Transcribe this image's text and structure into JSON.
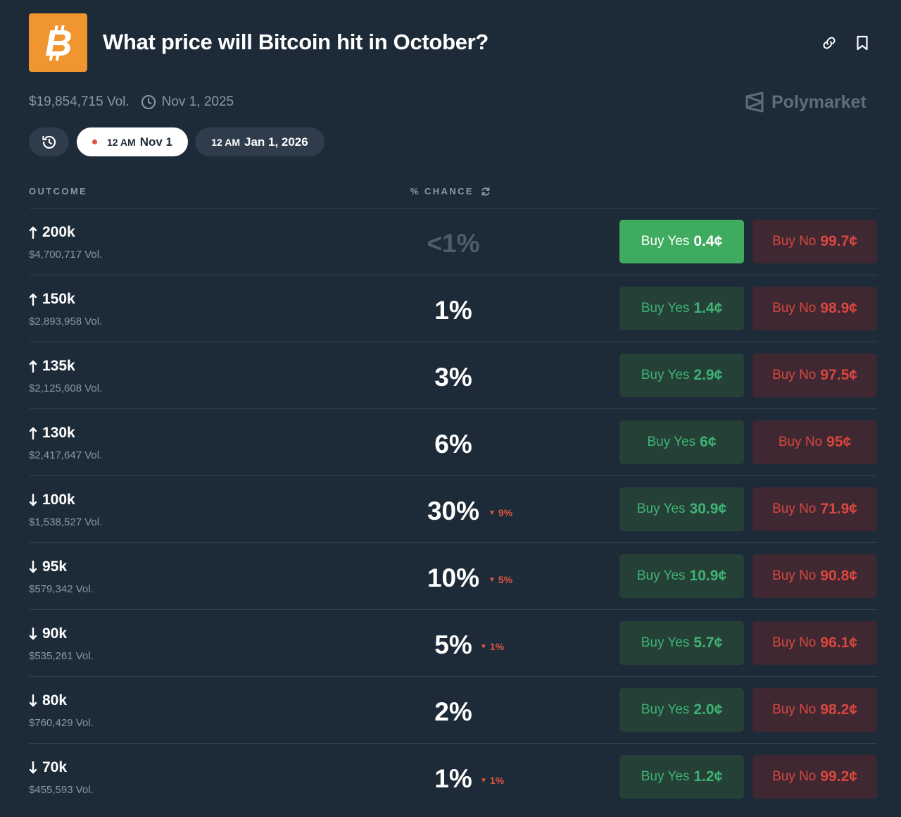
{
  "header": {
    "title": "What price will Bitcoin hit in October?",
    "logo_icon": "bitcoin-icon",
    "logo_color": "#f0952f"
  },
  "meta": {
    "volume": "$19,854,715 Vol.",
    "end_date": "Nov 1, 2025",
    "brand": "Polymarket"
  },
  "date_pills": {
    "selected_time": "12 AM",
    "selected_date": "Nov 1",
    "other_time": "12 AM",
    "other_date": "Jan 1, 2026"
  },
  "table": {
    "outcome_header": "OUTCOME",
    "chance_header": "% CHANCE",
    "yes_label": "Buy Yes",
    "no_label": "Buy No",
    "rows": [
      {
        "direction": "up",
        "label": "200k",
        "volume": "$4,700,717 Vol.",
        "chance": "<1%",
        "delta": "",
        "yes": "0.4¢",
        "no": "99.7¢"
      },
      {
        "direction": "up",
        "label": "150k",
        "volume": "$2,893,958 Vol.",
        "chance": "1%",
        "delta": "",
        "yes": "1.4¢",
        "no": "98.9¢"
      },
      {
        "direction": "up",
        "label": "135k",
        "volume": "$2,125,608 Vol.",
        "chance": "3%",
        "delta": "",
        "yes": "2.9¢",
        "no": "97.5¢"
      },
      {
        "direction": "up",
        "label": "130k",
        "volume": "$2,417,647 Vol.",
        "chance": "6%",
        "delta": "",
        "yes": "6¢",
        "no": "95¢"
      },
      {
        "direction": "down",
        "label": "100k",
        "volume": "$1,538,527 Vol.",
        "chance": "30%",
        "delta": "9%",
        "yes": "30.9¢",
        "no": "71.9¢"
      },
      {
        "direction": "down",
        "label": "95k",
        "volume": "$579,342 Vol.",
        "chance": "10%",
        "delta": "5%",
        "yes": "10.9¢",
        "no": "90.8¢"
      },
      {
        "direction": "down",
        "label": "90k",
        "volume": "$535,261 Vol.",
        "chance": "5%",
        "delta": "1%",
        "yes": "5.7¢",
        "no": "96.1¢"
      },
      {
        "direction": "down",
        "label": "80k",
        "volume": "$760,429 Vol.",
        "chance": "2%",
        "delta": "",
        "yes": "2.0¢",
        "no": "98.2¢"
      },
      {
        "direction": "down",
        "label": "70k",
        "volume": "$455,593 Vol.",
        "chance": "1%",
        "delta": "1%",
        "yes": "1.2¢",
        "no": "99.2¢"
      }
    ]
  },
  "colors": {
    "background": "#1d2b39",
    "yes_text": "#3fb374",
    "no_text": "#d8473f",
    "delta_down": "#e05541"
  }
}
